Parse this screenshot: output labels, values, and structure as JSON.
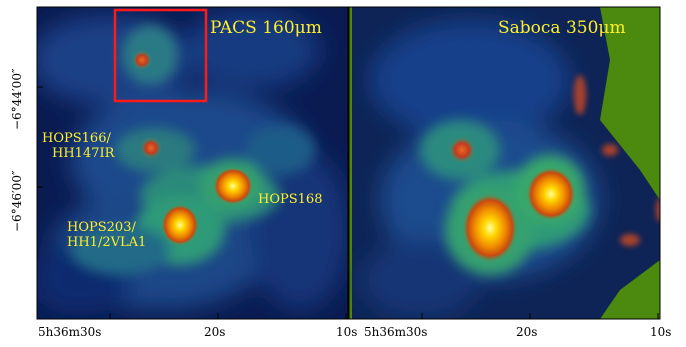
{
  "panels": [
    {
      "title": "PACS 160μm"
    },
    {
      "title": "Saboca 350μm"
    }
  ],
  "annotations": {
    "hops166_line1": "HOPS166/",
    "hops166_line2": "HH147IR",
    "hops168": "HOPS168",
    "hops203_line1": "HOPS203/",
    "hops203_line2": "HH1/2VLA1"
  },
  "y_ticks": [
    "−6°44′00″",
    "−6°46′00″"
  ],
  "x_ticks_left": [
    "5h36m30s",
    "20s",
    "10s"
  ],
  "x_ticks_right": [
    "5h36m30s",
    "20s",
    "10s"
  ],
  "colors": {
    "annotation": "#ffef2a",
    "highlight_box": "#ff1a1a",
    "blank_region": "#4b8a0e"
  }
}
